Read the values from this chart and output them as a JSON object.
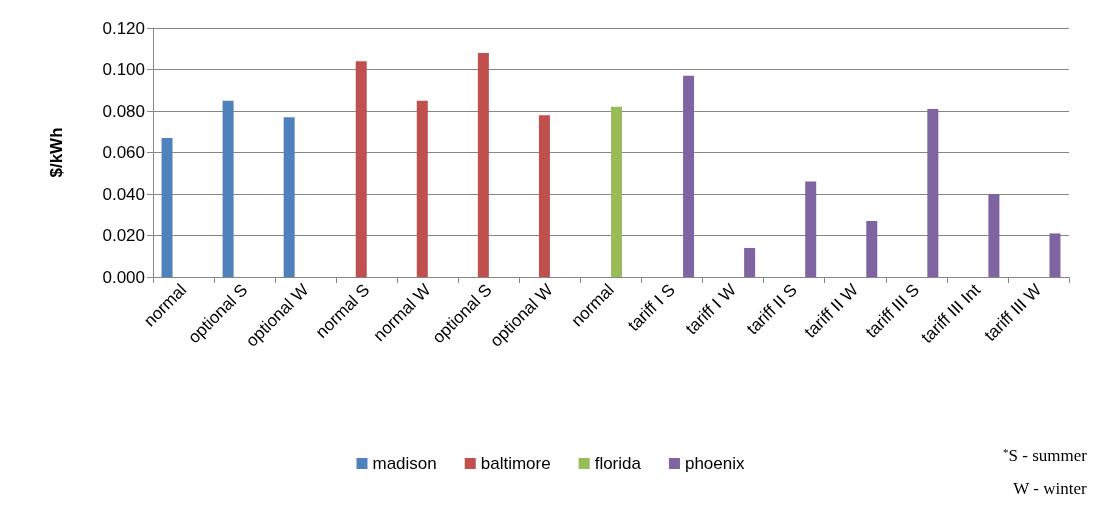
{
  "chart_data": {
    "type": "bar",
    "ylabel": "$/kWh",
    "categories": [
      "normal",
      "optional S",
      "optional W",
      "normal S",
      "normal W",
      "optional S",
      "optional W",
      "normal",
      "tariff I S",
      "tariff I W",
      "tariff II S",
      "tariff II W",
      "tariff III S",
      "tariff III Int",
      "tariff III W"
    ],
    "series": [
      {
        "name": "madison",
        "color": "#4f81bd",
        "values": [
          0.067,
          0.085,
          0.077,
          null,
          null,
          null,
          null,
          null,
          null,
          null,
          null,
          null,
          null,
          null,
          null
        ]
      },
      {
        "name": "baltimore",
        "color": "#c0504d",
        "values": [
          null,
          null,
          null,
          0.104,
          0.085,
          0.108,
          0.078,
          null,
          null,
          null,
          null,
          null,
          null,
          null,
          null
        ]
      },
      {
        "name": "florida",
        "color": "#9bbb59",
        "values": [
          null,
          null,
          null,
          null,
          null,
          null,
          null,
          0.082,
          null,
          null,
          null,
          null,
          null,
          null,
          null
        ]
      },
      {
        "name": "phoenix",
        "color": "#8064a2",
        "values": [
          null,
          null,
          null,
          null,
          null,
          null,
          null,
          null,
          0.097,
          0.014,
          0.046,
          0.027,
          0.081,
          0.04,
          0.021
        ]
      }
    ],
    "ylim": [
      0,
      0.12
    ],
    "yticks": [
      {
        "value": 0,
        "label": "0.000"
      },
      {
        "value": 0.02,
        "label": "0.020"
      },
      {
        "value": 0.04,
        "label": "0.040"
      },
      {
        "value": 0.06,
        "label": "0.060"
      },
      {
        "value": 0.08,
        "label": "0.080"
      },
      {
        "value": 0.1,
        "label": "0.100"
      },
      {
        "value": 0.12,
        "label": "0.120"
      }
    ],
    "grid": "y",
    "legend": "bottom",
    "annotations": [
      "$^{*}$S - summer",
      "W - winter"
    ]
  }
}
